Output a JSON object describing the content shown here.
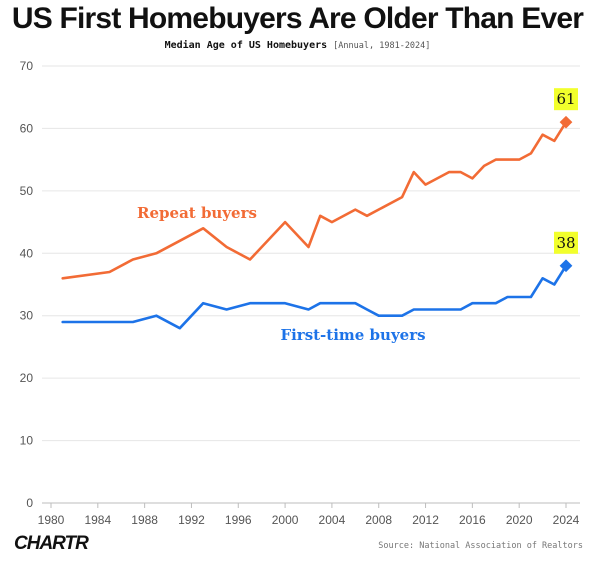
{
  "header": {
    "title": "US First Homebuyers Are Older Than Ever",
    "subtitle": "Median Age of US Homebuyers",
    "subtitle_note": "[Annual, 1981-2024]"
  },
  "footer": {
    "brand": "CHARTR",
    "source": "Source: National Association of Realtors"
  },
  "chart_data": {
    "type": "line",
    "title": "US First Homebuyers Are Older Than Ever",
    "subtitle": "Median Age of US Homebuyers [Annual, 1981-2024]",
    "xlabel": "",
    "ylabel": "",
    "xlim": [
      1980,
      2024
    ],
    "ylim": [
      0,
      70
    ],
    "x_ticks": [
      1980,
      1984,
      1988,
      1992,
      1996,
      2000,
      2004,
      2008,
      2012,
      2016,
      2020,
      2024
    ],
    "y_ticks": [
      0,
      10,
      20,
      30,
      40,
      50,
      60,
      70
    ],
    "grid": "horizontal",
    "legend": "none (direct labels on lines)",
    "series": [
      {
        "name": "Repeat buyers",
        "color": "#f26b35",
        "label_value": "61",
        "points": [
          [
            1981,
            36
          ],
          [
            1985,
            37
          ],
          [
            1987,
            39
          ],
          [
            1989,
            40
          ],
          [
            1991,
            42
          ],
          [
            1993,
            44
          ],
          [
            1995,
            41
          ],
          [
            1997,
            39
          ],
          [
            2000,
            45
          ],
          [
            2002,
            41
          ],
          [
            2003,
            46
          ],
          [
            2004,
            45
          ],
          [
            2006,
            47
          ],
          [
            2007,
            46
          ],
          [
            2010,
            49
          ],
          [
            2011,
            53
          ],
          [
            2012,
            51
          ],
          [
            2014,
            53
          ],
          [
            2015,
            53
          ],
          [
            2016,
            52
          ],
          [
            2017,
            54
          ],
          [
            2018,
            55
          ],
          [
            2020,
            55
          ],
          [
            2021,
            56
          ],
          [
            2022,
            59
          ],
          [
            2023,
            58
          ],
          [
            2024,
            61
          ]
        ]
      },
      {
        "name": "First-time buyers",
        "color": "#1d73e8",
        "label_value": "38",
        "points": [
          [
            1981,
            29
          ],
          [
            1985,
            29
          ],
          [
            1987,
            29
          ],
          [
            1989,
            30
          ],
          [
            1991,
            28
          ],
          [
            1993,
            32
          ],
          [
            1995,
            31
          ],
          [
            1997,
            32
          ],
          [
            2000,
            32
          ],
          [
            2002,
            31
          ],
          [
            2003,
            32
          ],
          [
            2004,
            32
          ],
          [
            2006,
            32
          ],
          [
            2007,
            31
          ],
          [
            2008,
            30
          ],
          [
            2010,
            30
          ],
          [
            2011,
            31
          ],
          [
            2012,
            31
          ],
          [
            2014,
            31
          ],
          [
            2015,
            31
          ],
          [
            2016,
            32
          ],
          [
            2018,
            32
          ],
          [
            2019,
            33
          ],
          [
            2021,
            33
          ],
          [
            2022,
            36
          ],
          [
            2023,
            35
          ],
          [
            2024,
            38
          ]
        ]
      }
    ]
  },
  "colors": {
    "background": "#ffffff",
    "grid": "#e6e6e6",
    "axis_text": "#555555",
    "callout_bg": "#f2ff2c",
    "text": "#111111"
  }
}
